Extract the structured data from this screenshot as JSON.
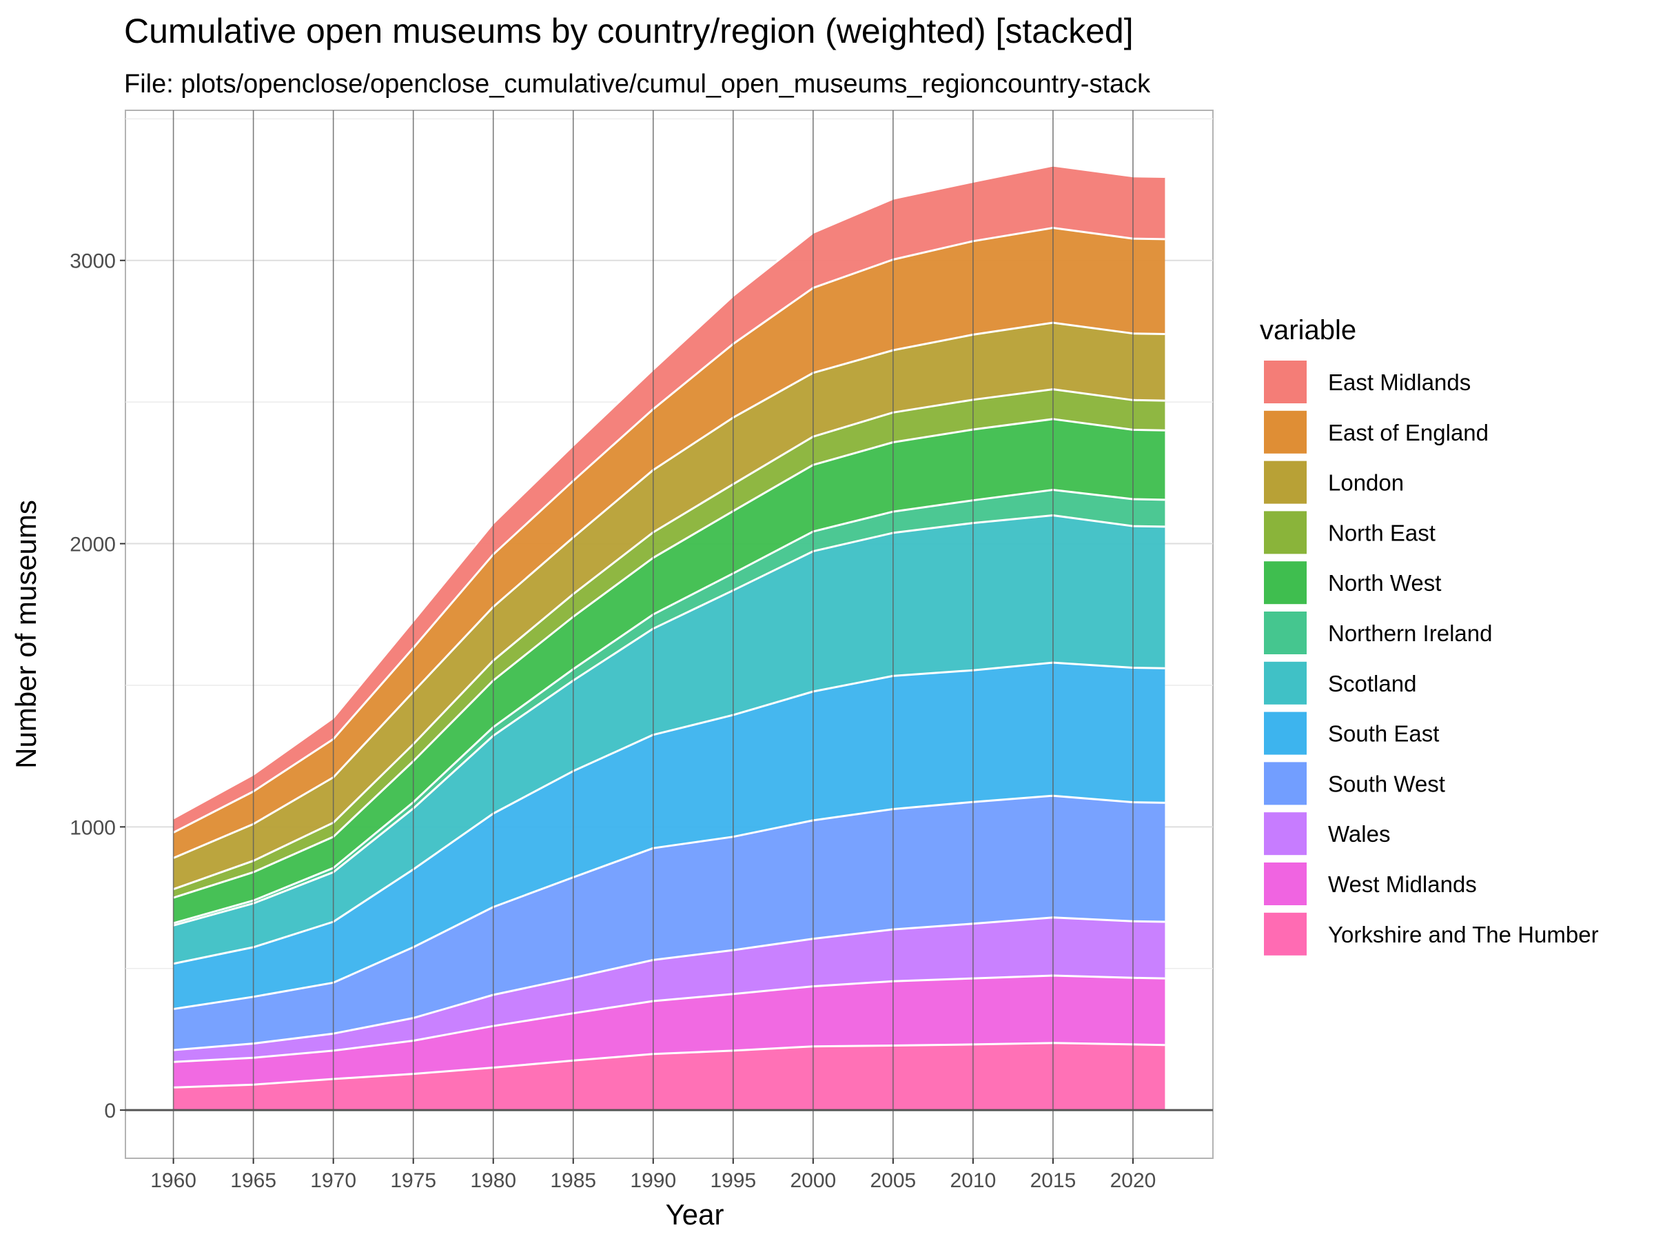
{
  "chart_data": {
    "type": "area",
    "stacked": true,
    "title": "Cumulative open museums by country/region (weighted) [stacked]",
    "subtitle": "File: plots/openclose/openclose_cumulative/cumul_open_museums_regioncountry-stack",
    "xlabel": "Year",
    "ylabel": "Number of museums",
    "xlim": [
      1957,
      2025
    ],
    "ylim": [
      -170,
      3530
    ],
    "x_ticks": [
      1960,
      1965,
      1970,
      1975,
      1980,
      1985,
      1990,
      1995,
      2000,
      2005,
      2010,
      2015,
      2020
    ],
    "y_ticks": [
      0,
      1000,
      2000,
      3000
    ],
    "grid": true,
    "legend_title": "variable",
    "legend_position": "right",
    "x": [
      1960,
      1965,
      1970,
      1975,
      1980,
      1985,
      1990,
      1995,
      2000,
      2005,
      2010,
      2015,
      2020,
      2022
    ],
    "series": [
      {
        "name": "Yorkshire and The Humber",
        "color": "#FF6BB3",
        "values": [
          80,
          90,
          110,
          128,
          150,
          175,
          198,
          210,
          225,
          228,
          232,
          237,
          232,
          230
        ]
      },
      {
        "name": "West Midlands",
        "color": "#F064E1",
        "values": [
          90,
          95,
          100,
          117,
          147,
          167,
          187,
          200,
          212,
          227,
          233,
          238,
          235,
          235
        ]
      },
      {
        "name": "Wales",
        "color": "#C77CFF",
        "values": [
          42,
          50,
          60,
          80,
          110,
          125,
          145,
          155,
          168,
          183,
          193,
          205,
          200,
          200
        ]
      },
      {
        "name": "South West",
        "color": "#729EFF",
        "values": [
          145,
          165,
          180,
          250,
          310,
          355,
          395,
          400,
          418,
          425,
          430,
          430,
          420,
          420
        ]
      },
      {
        "name": "South East",
        "color": "#3DB4EE",
        "values": [
          160,
          175,
          215,
          275,
          330,
          375,
          400,
          430,
          455,
          470,
          465,
          470,
          475,
          475
        ]
      },
      {
        "name": "Scotland",
        "color": "#40C1C6",
        "values": [
          135,
          155,
          175,
          215,
          275,
          320,
          375,
          440,
          495,
          505,
          520,
          520,
          500,
          500
        ]
      },
      {
        "name": "Northern Ireland",
        "color": "#45C68F",
        "values": [
          8,
          10,
          15,
          22,
          30,
          40,
          50,
          60,
          70,
          75,
          80,
          90,
          95,
          95
        ]
      },
      {
        "name": "North West",
        "color": "#3FBE4F",
        "values": [
          90,
          100,
          110,
          145,
          165,
          185,
          200,
          220,
          235,
          245,
          250,
          250,
          245,
          245
        ]
      },
      {
        "name": "North East",
        "color": "#8AB43A",
        "values": [
          30,
          40,
          50,
          60,
          70,
          80,
          90,
          95,
          100,
          105,
          105,
          105,
          105,
          105
        ]
      },
      {
        "name": "London",
        "color": "#B8A136",
        "values": [
          110,
          130,
          160,
          185,
          190,
          200,
          220,
          235,
          225,
          220,
          230,
          235,
          235,
          235
        ]
      },
      {
        "name": "East of England",
        "color": "#DF8E35",
        "values": [
          90,
          115,
          135,
          155,
          185,
          200,
          215,
          260,
          300,
          320,
          330,
          335,
          335,
          335
        ]
      },
      {
        "name": "East Midlands",
        "color": "#F47D77",
        "values": [
          50,
          60,
          75,
          95,
          110,
          125,
          140,
          170,
          195,
          215,
          210,
          220,
          220,
          220
        ]
      }
    ]
  }
}
